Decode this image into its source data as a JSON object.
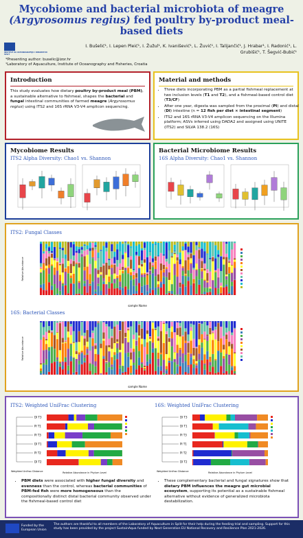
{
  "header": {
    "title": "Mycobiome and bacterial microbiota of meagre",
    "title_italic": "(Argyrosomus regius)",
    "title_rest": "fed poultry by-product meal-based diets",
    "logo_text": "INSTITUT ZA OCEANOGRAFIJU I RIBARSTVO SPLIT",
    "authors": "I. Bušelić¹, I. Lepen Pleić¹, I. Žužul¹, K. Ivanišević¹, L. Žuvić¹, I. Talijančić¹, J. Hrabar¹, I. Radonić¹, L. Grubišić¹, T. Šegvić-Bubić¹",
    "presenting": "*Presenting author: buselic@izor.hr",
    "affiliation": "¹Laboratory of Aquaculture, Institute of Oceanography and Fisheries, Croatia"
  },
  "introduction": {
    "heading": "Introduction",
    "text": [
      {
        "t": "This study evaluates how dietary "
      },
      {
        "t": "poultry by-product meal (PBM)",
        "b": true
      },
      {
        "t": ", a sustainable alternative to fishmeal, shapes the "
      },
      {
        "t": "bacterial",
        "b": true
      },
      {
        "t": " and "
      },
      {
        "t": "fungal",
        "b": true
      },
      {
        "t": " intestinal communities of farmed "
      },
      {
        "t": "meagre",
        "b": true
      },
      {
        "t": " ("
      },
      {
        "t": "Argyrosomus regius",
        "i": true
      },
      {
        "t": ") using ITS2 and 16S rRNA V3-V4 amplicon sequencing."
      }
    ]
  },
  "methods": {
    "heading": "Material and methods",
    "bullets": [
      [
        {
          "t": "Three diets incorporating PBM as a partial fishmeal replacement at two inclusion levels ("
        },
        {
          "t": "T1",
          "b": true
        },
        {
          "t": " and "
        },
        {
          "t": "T2",
          "b": true
        },
        {
          "t": "), and a fishmeal-based control diet ("
        },
        {
          "t": "T3/CF",
          "b": true
        },
        {
          "t": ")"
        }
      ],
      [
        {
          "t": "After one year, digesta was sampled from the proximal ("
        },
        {
          "t": "PI",
          "b": true
        },
        {
          "t": ") and distal ("
        },
        {
          "t": "DI",
          "b": true
        },
        {
          "t": ") intestine (n = "
        },
        {
          "t": "12 fish per diet × intestinal segment",
          "b": true
        },
        {
          "t": ")"
        }
      ],
      [
        {
          "t": "ITS2 and 16S rRNA V3-V4 amplicon sequencing on the Illumina platform; ASVs inferred using DADA2 and assigned using UNITE (ITS2) and SILVA 138.2 (16S)"
        }
      ]
    ]
  },
  "mycobiome": {
    "heading": "Mycobiome Results",
    "subheading": "ITS2 Alpha Diversity: Chao1 vs. Shannon"
  },
  "bacterial": {
    "heading": "Bacterial Microbiome Results",
    "subheading": "16S Alpha Diversity: Chao1 vs. Shannon"
  },
  "classes": {
    "its2_heading": "ITS2: Fungal Classes",
    "s16_heading": "16S: Bacterial Classes",
    "y_label": "Relative Abundance",
    "x_label": "sample Name"
  },
  "clustering": {
    "its2_heading": "ITS2: Weighted UniFrac Clustering",
    "s16_heading": "16S: Weighted UniFrac Clustering",
    "its2_samples": [
      "DI T3",
      "PI T1",
      "PI T3",
      "DI T1",
      "PI T2",
      "DI T2"
    ],
    "s16_samples": [
      "DI T3",
      "DI T1",
      "PI T3",
      "PI T1",
      "PI T2",
      "DI T2"
    ],
    "dist_label": "Weighted Unifrac Distance",
    "abund_label": "Relative Abundance in Phylum Level"
  },
  "conclusions": [
    [
      {
        "t": "PBM diets",
        "b": true
      },
      {
        "t": " were associated with "
      },
      {
        "t": "higher fungal diversity",
        "b": true
      },
      {
        "t": " and "
      },
      {
        "t": "evenness",
        "b": true
      },
      {
        "t": " than the control, whereas "
      },
      {
        "t": "bacterial communities",
        "b": true
      },
      {
        "t": " of "
      },
      {
        "t": "PBM-fed fish",
        "b": true
      },
      {
        "t": " were "
      },
      {
        "t": "more homogeneous",
        "b": true
      },
      {
        "t": " than the compositionally distinct distal bacterial community observed under the fishmeal-based control diet"
      }
    ],
    [
      {
        "t": "These complementary bacterial and fungal signatures show that "
      },
      {
        "t": "dietary PBM influences the meagre gut microbial ecosystem",
        "b": true
      },
      {
        "t": ", supporting its potential as a sustainable fishmeal alternative without evidence of generalized microbiota destabilization."
      }
    ]
  ],
  "footer": {
    "eu": "Funded by the European Union",
    "text": "The authors are thankful to all members of the Laboratory of Aquaculture in Split for their help during the feeding trial and sampling. Support for this study has been provided by the project SustainAqua funded by Next Generation EU National Recovery and Resilience Plan 2021-2026."
  }
}
